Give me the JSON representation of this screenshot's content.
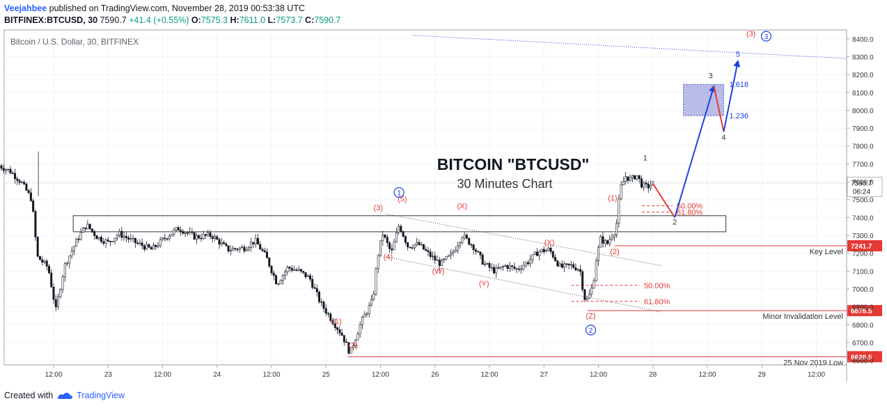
{
  "header": {
    "author": "Veejahbee",
    "published_text": "published on TradingView.com, November 28, 2019 00:53:38 UTC",
    "symbol_line": "BITFINEX:BTCUSD, 30",
    "last": "7590.7",
    "change": "+41.4 (+0.55%)",
    "o_label": "O:",
    "o_value": "7575.3",
    "h_label": "H:",
    "h_value": "7611.0",
    "l_label": "L:",
    "l_value": "7573.7",
    "c_label": "C:",
    "c_value": "7590.7"
  },
  "footer": {
    "created_with": "Created with",
    "brand": "TradingView"
  },
  "chart_data": {
    "type": "candlestick",
    "title": "BITCOIN \"BTCUSD\"",
    "subtitle": "30 Minutes Chart",
    "pane_label": "Bitcoin / U.S. Dollar, 30, BITFINEX",
    "ylim": [
      6575,
      8450
    ],
    "y_ticks": [
      6600,
      6700,
      6800,
      6900,
      7000,
      7100,
      7200,
      7300,
      7400,
      7500,
      7600,
      7700,
      7800,
      7900,
      8000,
      8100,
      8200,
      8300,
      8400
    ],
    "y_tick_labels": [
      "6600.0",
      "6700.0",
      "6800.0",
      "6900.0",
      "7000.0",
      "7100.0",
      "7200.0",
      "7300.0",
      "7400.0",
      "7500.0",
      "7600.0",
      "7700.0",
      "7800.0",
      "7900.0",
      "8000.0",
      "8100.0",
      "8200.0",
      "8300.0",
      "8400.0"
    ],
    "x_ticks": [
      {
        "label": "12:00",
        "t": 0.5
      },
      {
        "label": "23",
        "t": 1.0
      },
      {
        "label": "12:00",
        "t": 1.5
      },
      {
        "label": "24",
        "t": 2.0
      },
      {
        "label": "12:00",
        "t": 2.5
      },
      {
        "label": "25",
        "t": 3.0
      },
      {
        "label": "12:00",
        "t": 3.5
      },
      {
        "label": "26",
        "t": 4.0
      },
      {
        "label": "12:00",
        "t": 4.5
      },
      {
        "label": "27",
        "t": 5.0
      },
      {
        "label": "12:00",
        "t": 5.5
      },
      {
        "label": "28",
        "t": 6.0
      },
      {
        "label": "12:00",
        "t": 6.5
      },
      {
        "label": "29",
        "t": 7.0
      },
      {
        "label": "12:00",
        "t": 7.5
      }
    ],
    "price_path": [
      [
        0.0,
        7690
      ],
      [
        0.1,
        7660
      ],
      [
        0.2,
        7600
      ],
      [
        0.3,
        7500
      ],
      [
        0.35,
        7180
      ],
      [
        0.45,
        7120
      ],
      [
        0.52,
        6880
      ],
      [
        0.6,
        7130
      ],
      [
        0.72,
        7280
      ],
      [
        0.8,
        7360
      ],
      [
        0.9,
        7290
      ],
      [
        1.0,
        7260
      ],
      [
        1.1,
        7310
      ],
      [
        1.25,
        7260
      ],
      [
        1.4,
        7220
      ],
      [
        1.55,
        7300
      ],
      [
        1.65,
        7340
      ],
      [
        1.8,
        7290
      ],
      [
        1.95,
        7300
      ],
      [
        2.1,
        7220
      ],
      [
        2.25,
        7230
      ],
      [
        2.35,
        7270
      ],
      [
        2.45,
        7180
      ],
      [
        2.55,
        7030
      ],
      [
        2.65,
        7120
      ],
      [
        2.75,
        7100
      ],
      [
        2.85,
        7060
      ],
      [
        2.95,
        6920
      ],
      [
        3.05,
        6830
      ],
      [
        3.15,
        6740
      ],
      [
        3.22,
        6640
      ],
      [
        3.32,
        6810
      ],
      [
        3.43,
        6940
      ],
      [
        3.47,
        7170
      ],
      [
        3.52,
        7310
      ],
      [
        3.6,
        7200
      ],
      [
        3.67,
        7360
      ],
      [
        3.75,
        7240
      ],
      [
        3.85,
        7250
      ],
      [
        3.95,
        7190
      ],
      [
        4.05,
        7140
      ],
      [
        4.15,
        7190
      ],
      [
        4.25,
        7300
      ],
      [
        4.35,
        7240
      ],
      [
        4.45,
        7140
      ],
      [
        4.55,
        7100
      ],
      [
        4.65,
        7130
      ],
      [
        4.75,
        7110
      ],
      [
        4.85,
        7150
      ],
      [
        4.95,
        7210
      ],
      [
        5.05,
        7220
      ],
      [
        5.15,
        7120
      ],
      [
        5.25,
        7130
      ],
      [
        5.33,
        7110
      ],
      [
        5.37,
        6950
      ],
      [
        5.4,
        6940
      ],
      [
        5.45,
        7020
      ],
      [
        5.48,
        7170
      ],
      [
        5.52,
        7280
      ],
      [
        5.58,
        7250
      ],
      [
        5.62,
        7300
      ],
      [
        5.66,
        7330
      ],
      [
        5.7,
        7560
      ],
      [
        5.75,
        7630
      ],
      [
        5.8,
        7610
      ],
      [
        5.85,
        7640
      ],
      [
        5.9,
        7580
      ],
      [
        5.95,
        7570
      ],
      [
        6.0,
        7591
      ]
    ],
    "tick_noise": 35,
    "last_price": 7590.7,
    "current_price_label": "7590.7",
    "countdown": "06:24",
    "levels": [
      {
        "name": "Key Level",
        "price": 7241.7,
        "label": "7241.7",
        "color": "#e53935",
        "t_start": 5.65
      },
      {
        "name": "Minor Invalidation Level",
        "price": 6878.5,
        "label": "6878.5",
        "color": "#e53935",
        "t_start": 5.4
      },
      {
        "name": "25 Nov 2019 Low",
        "price": 6620.5,
        "label": "6620.5",
        "color": "#e53935",
        "t_start": 3.2
      }
    ],
    "zone": {
      "t_start": 0.68,
      "t_end": 6.67,
      "price_top": 7410,
      "price_bottom": 7320
    },
    "fib_box": {
      "t_start": 6.28,
      "t_end": 6.65,
      "price_top": 8145,
      "price_bottom": 7970,
      "color": "#8c8fd9",
      "label_top": "1.618",
      "label_bottom": "1.236"
    },
    "fib_retrace_top": [
      {
        "label": "50.00%",
        "price": 7465,
        "t_start": 5.9,
        "t_end": 6.18
      },
      {
        "label": "61.80%",
        "price": 7430,
        "t_start": 5.9,
        "t_end": 6.18
      }
    ],
    "fib_retrace_bottom": [
      {
        "label": "50.00%",
        "price": 7020,
        "t_start": 5.25,
        "t_end": 5.88
      },
      {
        "label": "61.80%",
        "price": 6930,
        "t_start": 5.25,
        "t_end": 5.88
      }
    ],
    "channel": [
      {
        "t0": 3.55,
        "p0": 7420,
        "t1": 6.08,
        "p1": 7130
      },
      {
        "t0": 3.55,
        "p0": 7180,
        "t1": 6.08,
        "p1": 6870
      }
    ],
    "trendline": {
      "t0": 3.8,
      "p0": 8420,
      "t1": 7.78,
      "p1": 8290
    },
    "projection": [
      {
        "t0": 6.0,
        "p0": 7590,
        "t1": 6.2,
        "p1": 7400,
        "color": "#e53935"
      },
      {
        "t0": 6.2,
        "p0": 7400,
        "t1": 6.56,
        "p1": 8135,
        "color": "#1e40e0"
      },
      {
        "t0": 6.56,
        "p0": 8135,
        "t1": 6.65,
        "p1": 7880,
        "color": "#e53935"
      },
      {
        "t0": 6.65,
        "p0": 7880,
        "t1": 6.78,
        "p1": 8275,
        "color": "#1e40e0"
      }
    ],
    "wave_labels": [
      {
        "text": "(1)",
        "t": 3.1,
        "price": 6805,
        "color": "#e53935"
      },
      {
        "text": "(2)",
        "t": 3.25,
        "price": 6670,
        "color": "#e53935"
      },
      {
        "text": "(3)",
        "t": 3.48,
        "price": 7440,
        "color": "#e53935"
      },
      {
        "text": "(4)",
        "t": 3.57,
        "price": 7165,
        "color": "#e53935"
      },
      {
        "text": "(5)",
        "t": 3.7,
        "price": 7490,
        "color": "#e53935"
      },
      {
        "text": "(X)",
        "t": 4.25,
        "price": 7450,
        "color": "#e53935"
      },
      {
        "text": "(W)",
        "t": 4.03,
        "price": 7085,
        "color": "#e53935"
      },
      {
        "text": "(Y)",
        "t": 4.45,
        "price": 7015,
        "color": "#e53935"
      },
      {
        "text": "(X)",
        "t": 5.05,
        "price": 7245,
        "color": "#e53935"
      },
      {
        "text": "(Z)",
        "t": 5.43,
        "price": 6835,
        "color": "#e53935"
      },
      {
        "text": "(1)",
        "t": 5.63,
        "price": 7495,
        "color": "#e53935"
      },
      {
        "text": "(2)",
        "t": 5.65,
        "price": 7195,
        "color": "#e53935"
      },
      {
        "text": "1",
        "t": 5.93,
        "price": 7720,
        "color": "#333333"
      },
      {
        "text": "2",
        "t": 6.2,
        "price": 7360,
        "color": "#333333"
      },
      {
        "text": "3",
        "t": 6.53,
        "price": 8180,
        "color": "#333333"
      },
      {
        "text": "4",
        "t": 6.65,
        "price": 7835,
        "color": "#333333"
      },
      {
        "text": "5",
        "t": 6.78,
        "price": 8300,
        "color": "#1e40e0"
      },
      {
        "text": "(3)",
        "t": 6.9,
        "price": 8415,
        "color": "#e53935"
      }
    ],
    "circled_labels": [
      {
        "text": "1",
        "t": 3.67,
        "price": 7540,
        "color": "#1e40e0"
      },
      {
        "text": "2",
        "t": 5.43,
        "price": 6770,
        "color": "#1e40e0"
      },
      {
        "text": "3",
        "t": 7.04,
        "price": 8415,
        "color": "#1e40e0"
      }
    ]
  }
}
